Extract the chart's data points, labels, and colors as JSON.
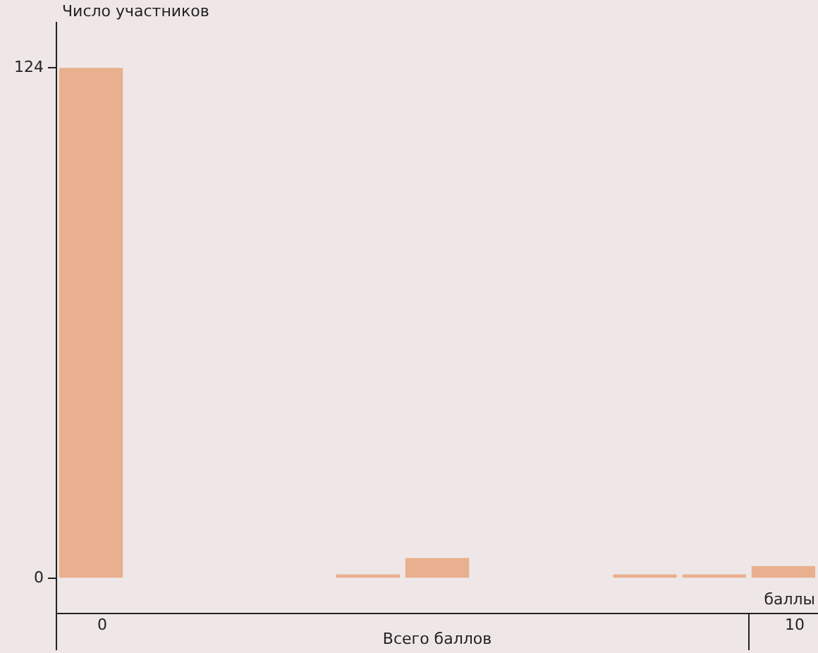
{
  "chart_data": {
    "type": "bar",
    "ylabel": "Число участников",
    "xlabel": "Всего баллов",
    "annotations": [
      "баллы"
    ],
    "categories": [
      "0",
      null,
      null,
      null,
      null,
      null,
      null,
      null,
      null,
      null,
      "10"
    ],
    "values": [
      124,
      0,
      0,
      0,
      1,
      5,
      0,
      0,
      1,
      1,
      3
    ],
    "color": "#e8b08e",
    "ylim": [
      -8.5,
      135
    ],
    "yticks": [
      0,
      124
    ],
    "grid": false,
    "legend": false
  }
}
